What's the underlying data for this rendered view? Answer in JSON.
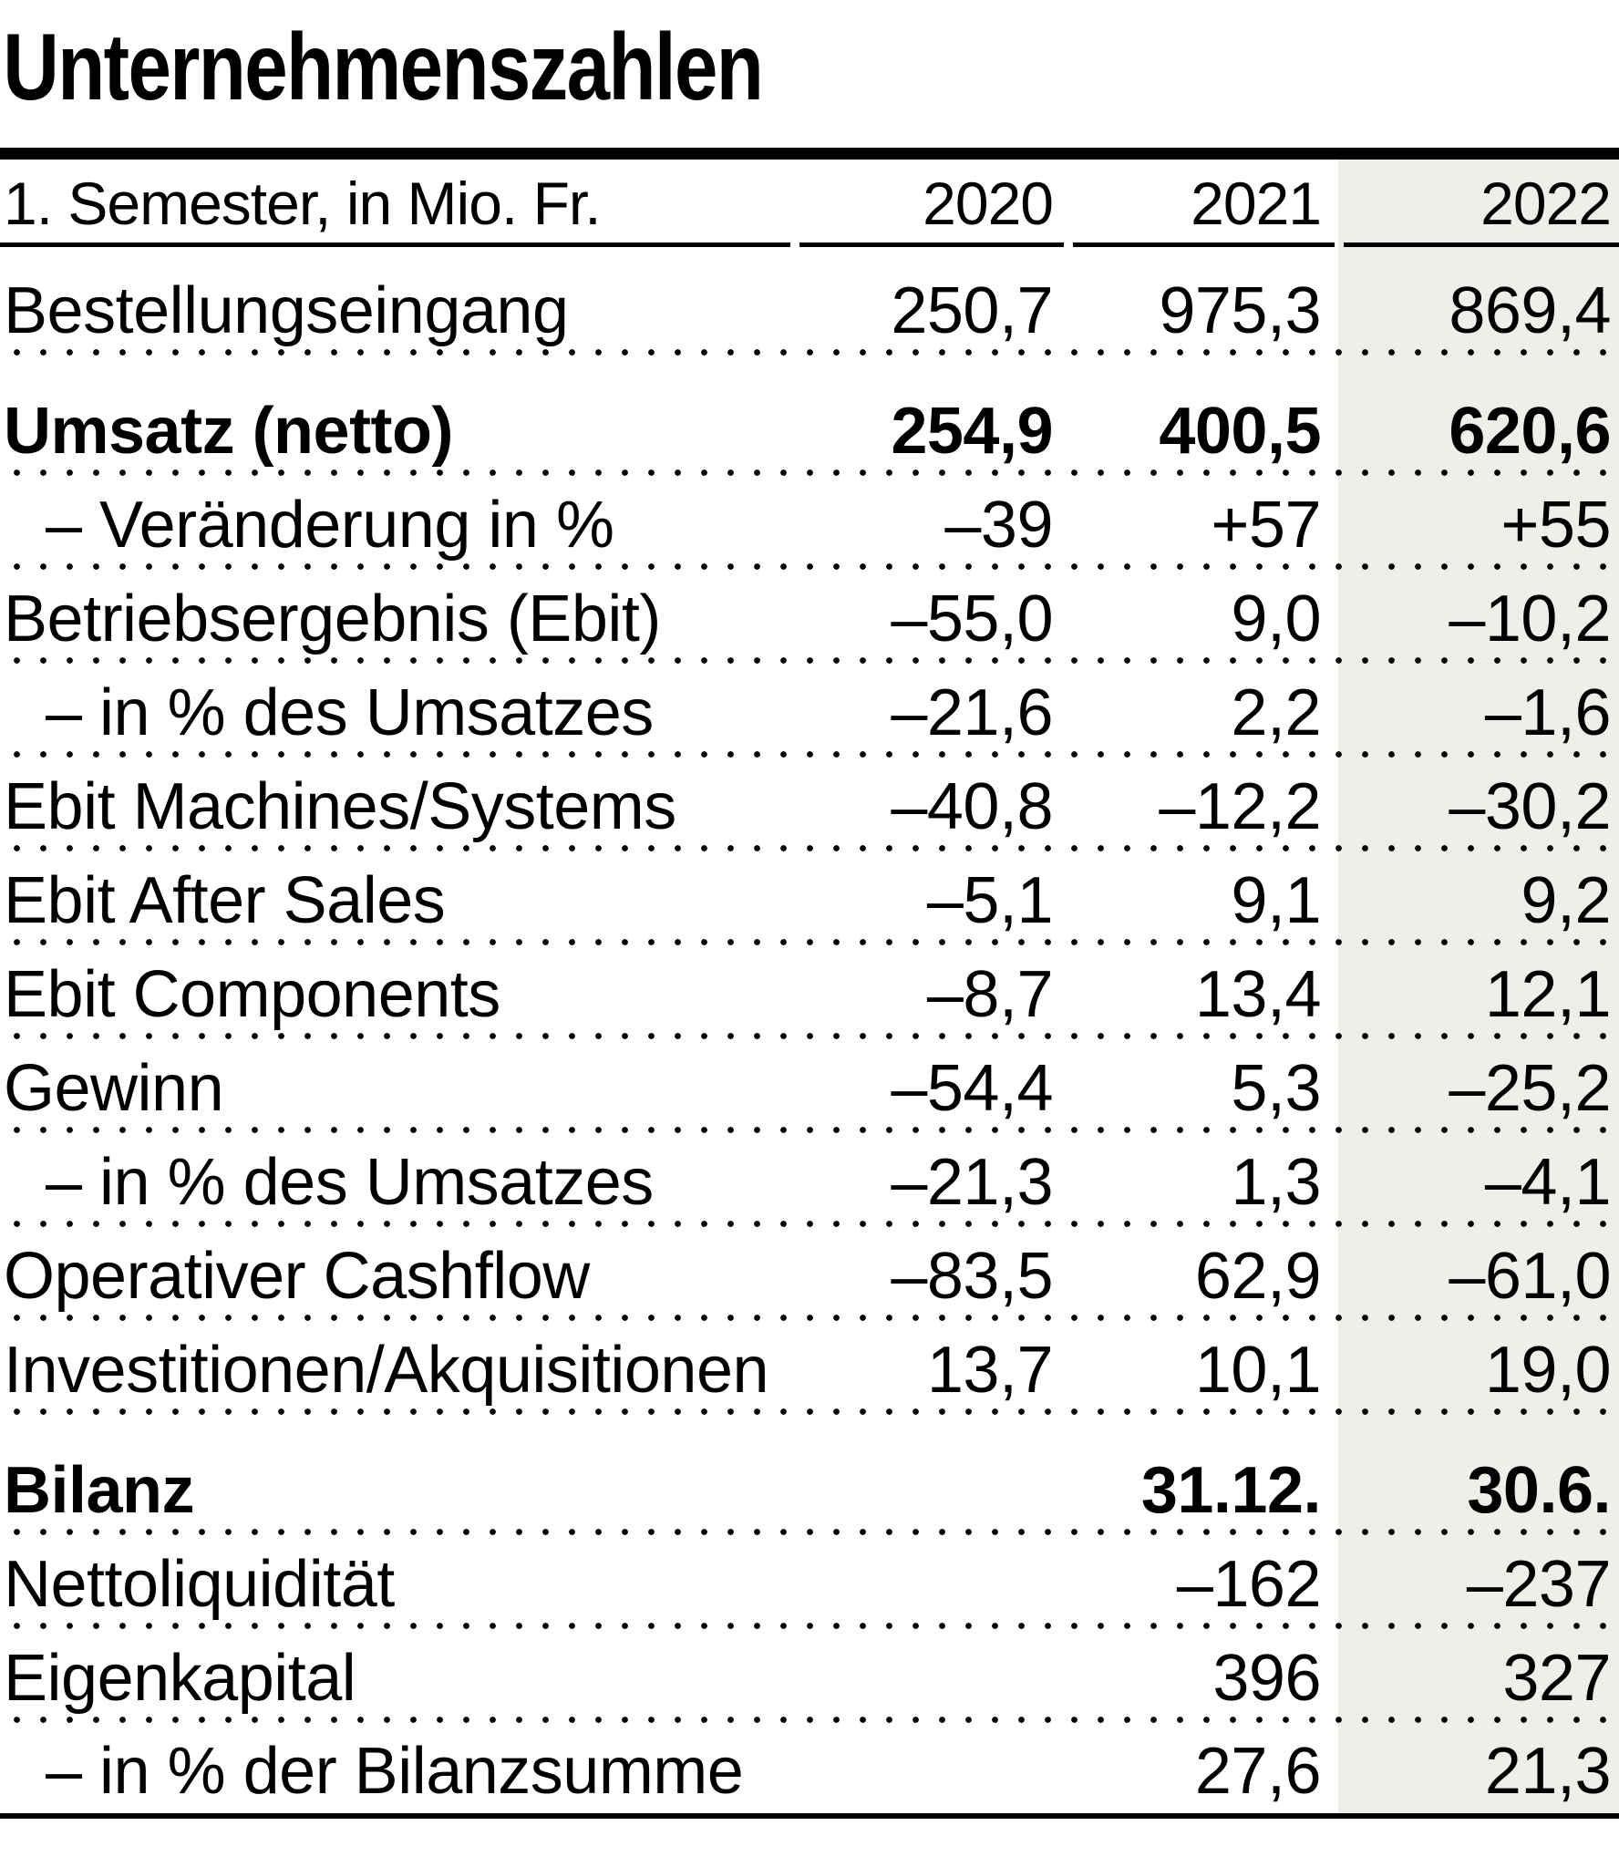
{
  "title": "Unternehmenszahlen",
  "header": {
    "unit_label": "1. Semester, in Mio. Fr.",
    "years": [
      "2020",
      "2021",
      "2022"
    ]
  },
  "colors": {
    "highlight_column_bg": "#efeee8",
    "text": "#000000",
    "rule": "#000000"
  },
  "chart_data": {
    "type": "table",
    "title": "Unternehmenszahlen",
    "unit": "1. Semester, in Mio. Fr.",
    "columns": [
      "2020",
      "2021",
      "2022"
    ],
    "highlighted_column": "2022",
    "rows": [
      {
        "label": "Bestellungseingang",
        "values": [
          "250,7",
          "975,3",
          "869,4"
        ]
      },
      {
        "label": "Umsatz (netto)",
        "values": [
          "254,9",
          "400,5",
          "620,6"
        ],
        "bold": true
      },
      {
        "label": "– Veränderung in %",
        "values": [
          "–39",
          "+57",
          "+55"
        ],
        "indent": true
      },
      {
        "label": "Betriebsergebnis (Ebit)",
        "values": [
          "–55,0",
          "9,0",
          "–10,2"
        ]
      },
      {
        "label": "– in % des Umsatzes",
        "values": [
          "–21,6",
          "2,2",
          "–1,6"
        ],
        "indent": true
      },
      {
        "label": "Ebit Machines/Systems",
        "values": [
          "–40,8",
          "–12,2",
          "–30,2"
        ]
      },
      {
        "label": "Ebit After Sales",
        "values": [
          "–5,1",
          "9,1",
          "9,2"
        ]
      },
      {
        "label": "Ebit Components",
        "values": [
          "–8,7",
          "13,4",
          "12,1"
        ]
      },
      {
        "label": "Gewinn",
        "values": [
          "–54,4",
          "5,3",
          "–25,2"
        ]
      },
      {
        "label": "– in % des Umsatzes",
        "values": [
          "–21,3",
          "1,3",
          "–4,1"
        ],
        "indent": true
      },
      {
        "label": "Operativer Cashflow",
        "values": [
          "–83,5",
          "62,9",
          "–61,0"
        ]
      },
      {
        "label": "Investitionen/Akquisitionen",
        "values": [
          "13,7",
          "10,1",
          "19,0"
        ]
      },
      {
        "label": "Bilanz",
        "values": [
          "",
          "31.12.",
          "30.6."
        ],
        "bold": true
      },
      {
        "label": "Nettoliquidität",
        "values": [
          "",
          "–162",
          "–237"
        ]
      },
      {
        "label": "Eigenkapital",
        "values": [
          "",
          "396",
          "327"
        ]
      },
      {
        "label": "– in % der Bilanzsumme",
        "values": [
          "",
          "27,6",
          "21,3"
        ],
        "indent": true
      }
    ]
  }
}
